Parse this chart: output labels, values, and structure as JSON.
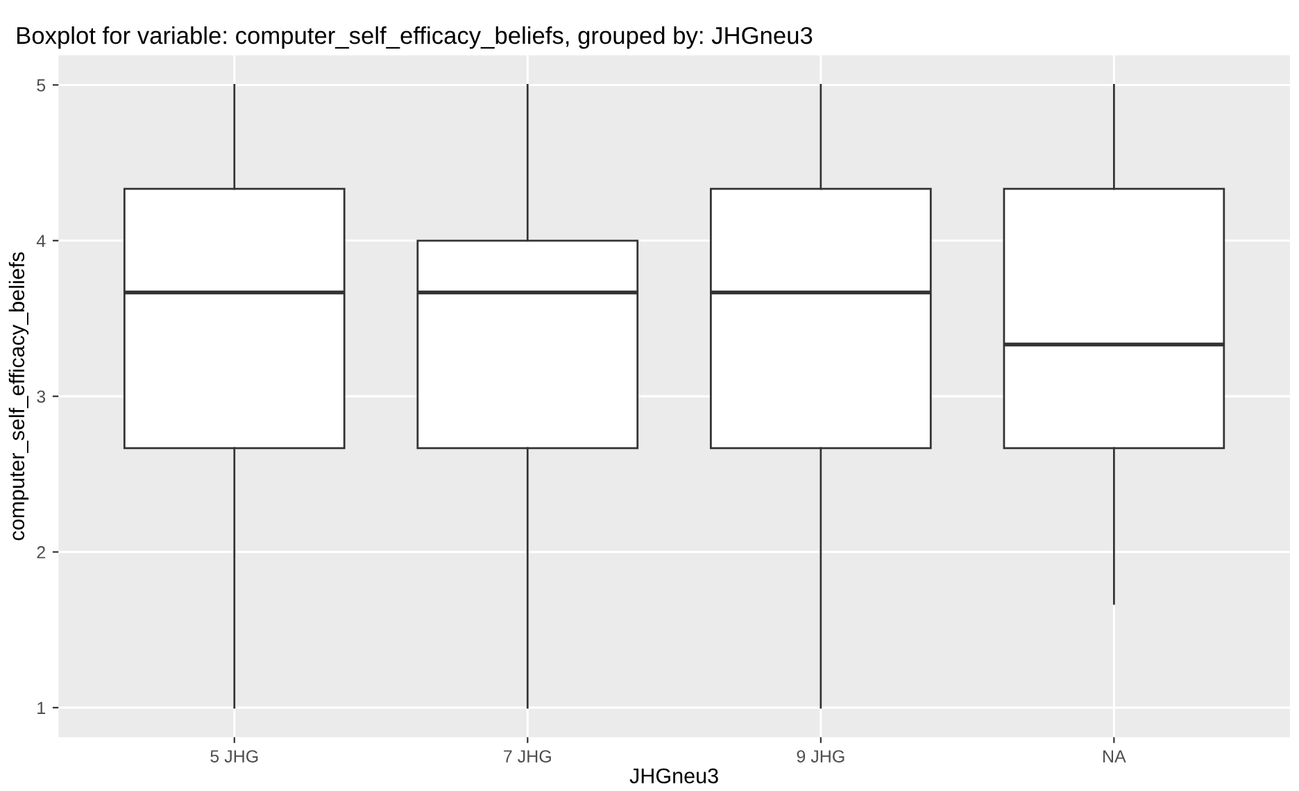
{
  "chart_data": {
    "type": "box",
    "title": "Boxplot for variable: computer_self_efficacy_beliefs, grouped by: JHGneu3",
    "xlabel": "JHGneu3",
    "ylabel": "computer_self_efficacy_beliefs",
    "categories": [
      "5 JHG",
      "7 JHG",
      "9 JHG",
      "NA"
    ],
    "boxes": [
      {
        "low": 1,
        "q1": 2.667,
        "median": 3.667,
        "q3": 4.333,
        "high": 5
      },
      {
        "low": 1,
        "q1": 2.667,
        "median": 3.667,
        "q3": 4.0,
        "high": 5
      },
      {
        "low": 1,
        "q1": 2.667,
        "median": 3.667,
        "q3": 4.333,
        "high": 5
      },
      {
        "low": 1.667,
        "q1": 2.667,
        "median": 3.333,
        "q3": 4.333,
        "high": 5
      }
    ],
    "color": "#ffffff",
    "ylim": [
      0.81,
      5.19
    ],
    "yticks": [
      1,
      2,
      3,
      4,
      5
    ],
    "grid": true
  }
}
